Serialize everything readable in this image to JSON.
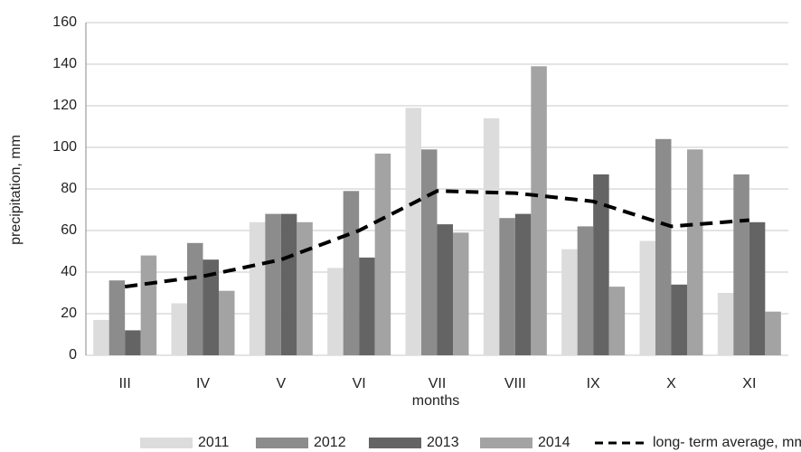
{
  "chart_data": {
    "type": "bar",
    "y_label": "precipitation, mm",
    "x_label": "months",
    "categories": [
      "III",
      "IV",
      "V",
      "VI",
      "VII",
      "VIII",
      "IX",
      "X",
      "XI"
    ],
    "series": [
      {
        "name": "2011",
        "type": "bar",
        "color": "#dcdcdc",
        "values": [
          17,
          25,
          64,
          42,
          119,
          114,
          51,
          55,
          30
        ]
      },
      {
        "name": "2012",
        "type": "bar",
        "color": "#8c8c8c",
        "values": [
          36,
          54,
          68,
          79,
          99,
          66,
          62,
          104,
          87
        ]
      },
      {
        "name": "2013",
        "type": "bar",
        "color": "#646464",
        "values": [
          12,
          46,
          68,
          47,
          63,
          68,
          87,
          34,
          64
        ]
      },
      {
        "name": "2014",
        "type": "bar",
        "color": "#a3a3a3",
        "values": [
          48,
          31,
          64,
          97,
          59,
          139,
          33,
          99,
          21
        ]
      },
      {
        "name": "long- term average, mm",
        "type": "line",
        "color": "#000000",
        "values": [
          33,
          38,
          46,
          60,
          79,
          78,
          74,
          62,
          65
        ]
      }
    ],
    "ylim": [
      0,
      160
    ],
    "yticks": [
      0,
      20,
      40,
      60,
      80,
      100,
      120,
      140,
      160
    ],
    "grid": true
  }
}
